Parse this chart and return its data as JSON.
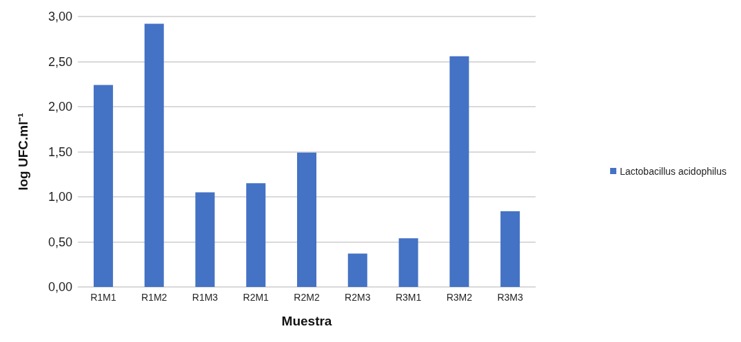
{
  "chart_data": {
    "type": "bar",
    "xlabel": "Muestra",
    "ylabel": "log UFC.ml⁻¹",
    "categories": [
      "R1M1",
      "R1M2",
      "R1M3",
      "R2M1",
      "R2M2",
      "R2M3",
      "R3M1",
      "R3M2",
      "R3M3"
    ],
    "series": [
      {
        "name": "Lactobacillus acidophilus",
        "color": "#4472c4",
        "values": [
          2.24,
          2.92,
          1.05,
          1.15,
          1.49,
          0.37,
          0.54,
          2.56,
          0.84
        ]
      }
    ],
    "ylim": [
      0,
      3
    ],
    "yticks": [
      {
        "value": 0,
        "label": "0,00"
      },
      {
        "value": 0.5,
        "label": "0,50"
      },
      {
        "value": 1,
        "label": "1,00"
      },
      {
        "value": 1.5,
        "label": "1,50"
      },
      {
        "value": 2,
        "label": "2,00"
      },
      {
        "value": 2.5,
        "label": "2,50"
      },
      {
        "value": 3,
        "label": "3,00"
      }
    ],
    "grid": "y",
    "legend": "right"
  }
}
